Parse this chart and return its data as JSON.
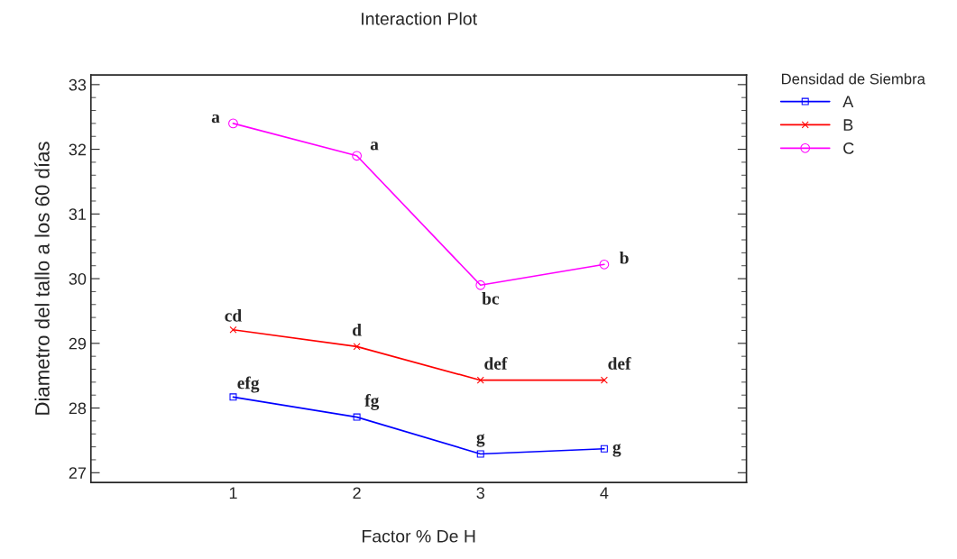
{
  "chart_data": {
    "type": "line",
    "title": "Interaction Plot",
    "xlabel": "Factor % De H",
    "ylabel": "Diametro del tallo a los 60 días",
    "legend_title": "Densidad de Siembra",
    "legend": "top right",
    "x": [
      1,
      2,
      3,
      4
    ],
    "xlim": [
      -0.15,
      5.15
    ],
    "xticks": [
      1,
      2,
      3,
      4
    ],
    "ylim": [
      26.85,
      33.15
    ],
    "yticks": [
      27,
      28,
      29,
      30,
      31,
      32,
      33
    ],
    "grid": false,
    "series": [
      {
        "name": "A",
        "color": "#0000ff",
        "marker": "square",
        "values": [
          28.17,
          27.86,
          27.29,
          27.37
        ]
      },
      {
        "name": "B",
        "color": "#ff0000",
        "marker": "cross",
        "values": [
          29.21,
          28.95,
          28.43,
          28.43
        ]
      },
      {
        "name": "C",
        "color": "#ff00ff",
        "marker": "circle",
        "values": [
          32.4,
          31.9,
          29.9,
          30.22
        ]
      }
    ],
    "annotations": [
      {
        "text": "efg",
        "x": 1,
        "y": 28.17
      },
      {
        "text": "fg",
        "x": 2,
        "y": 27.86
      },
      {
        "text": "g",
        "x": 3,
        "y": 27.29
      },
      {
        "text": "g",
        "x": 4,
        "y": 27.37
      },
      {
        "text": "cd",
        "x": 1,
        "y": 29.21
      },
      {
        "text": "d",
        "x": 2,
        "y": 28.95
      },
      {
        "text": "def",
        "x": 3,
        "y": 28.43
      },
      {
        "text": "def",
        "x": 4,
        "y": 28.43
      },
      {
        "text": "a",
        "x": 1,
        "y": 32.4
      },
      {
        "text": "a",
        "x": 2,
        "y": 31.9
      },
      {
        "text": "bc",
        "x": 3,
        "y": 29.9
      },
      {
        "text": "b",
        "x": 4,
        "y": 30.22
      }
    ]
  }
}
